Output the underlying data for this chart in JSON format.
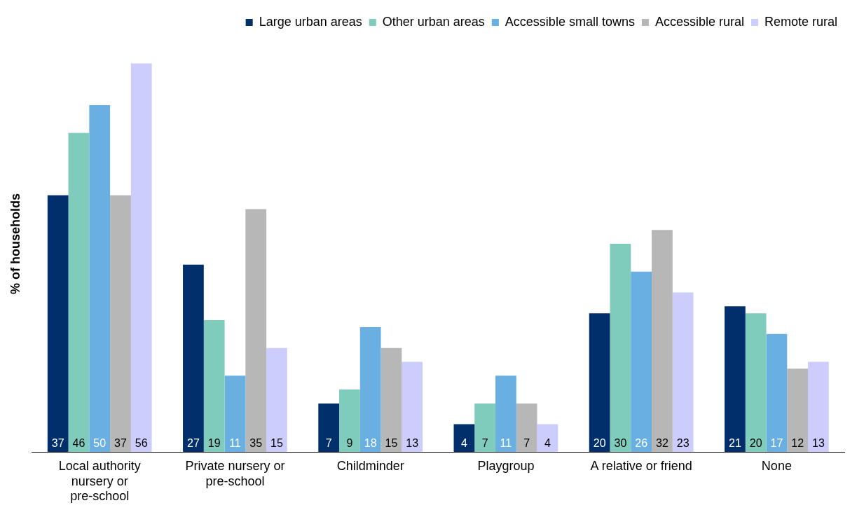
{
  "chart_data": {
    "type": "bar",
    "ylabel": "% of households",
    "categories": [
      "Local authority nursery or pre-school",
      "Private nursery or pre-school",
      "Childminder",
      "Playgroup",
      "A relative or friend",
      "None"
    ],
    "series": [
      {
        "name": "Large urban areas",
        "color": "#002f6c",
        "values": [
          37,
          27,
          7,
          4,
          20,
          21
        ]
      },
      {
        "name": "Other urban areas",
        "color": "#7fcbbc",
        "values": [
          46,
          19,
          9,
          7,
          30,
          20
        ]
      },
      {
        "name": "Accessible small towns",
        "color": "#6aafe1",
        "values": [
          50,
          11,
          18,
          11,
          26,
          17
        ]
      },
      {
        "name": "Accessible rural",
        "color": "#b7b7b7",
        "values": [
          37,
          35,
          15,
          7,
          32,
          12
        ]
      },
      {
        "name": "Remote rural",
        "color": "#cccdfc",
        "values": [
          56,
          15,
          13,
          4,
          23,
          13
        ]
      }
    ],
    "data_labels": true,
    "grid": false,
    "legend": "top right"
  }
}
